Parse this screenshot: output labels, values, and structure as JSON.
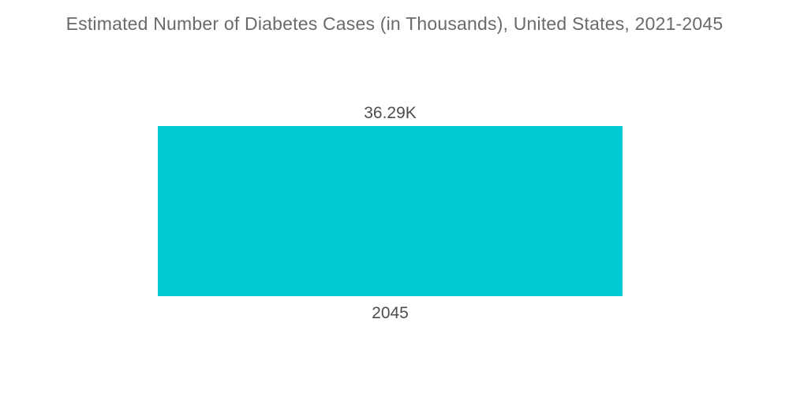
{
  "title": "Estimated Number of Diabetes Cases (in Thousands), United States, 2021-2045",
  "colors": {
    "bar": "#00CBD2",
    "title_text": "#6a6a6a",
    "label_text": "#4d4d4d",
    "background": "#ffffff"
  },
  "chart_data": {
    "type": "bar",
    "categories": [
      "2045"
    ],
    "values": [
      36.29
    ],
    "value_labels": [
      "36.29K"
    ],
    "title": "Estimated Number of Diabetes Cases (in Thousands), United States, 2021-2045",
    "xlabel": "",
    "ylabel": "",
    "unit": "Thousands",
    "orientation": "vertical",
    "grid": false,
    "legend": false,
    "axes_visible": false
  }
}
